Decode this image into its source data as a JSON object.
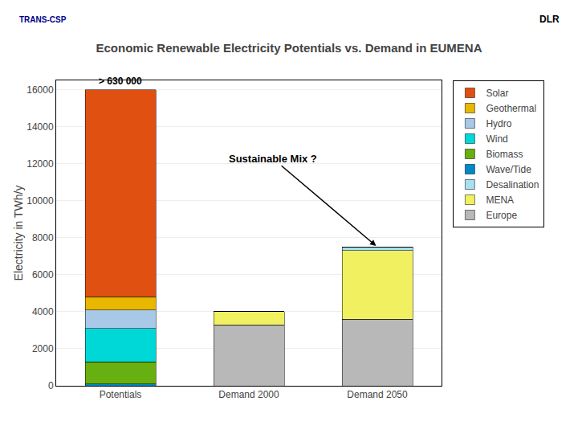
{
  "chart_data": {
    "type": "bar",
    "stacked": true,
    "title": "Economic Renewable Electricity Potentials vs. Demand in EUMENA",
    "ylabel": "Electricity in TWh/y",
    "categories": [
      "Potentials",
      "Demand 2000",
      "Demand 2050"
    ],
    "series": [
      {
        "name": "Solar",
        "color": "#e05010",
        "values": [
          11200,
          0,
          0
        ]
      },
      {
        "name": "Geothermal",
        "color": "#e8b800",
        "values": [
          700,
          0,
          0
        ]
      },
      {
        "name": "Hydro",
        "color": "#a8c8e8",
        "values": [
          1000,
          0,
          0
        ]
      },
      {
        "name": "Wind",
        "color": "#00d8d8",
        "values": [
          1800,
          0,
          0
        ]
      },
      {
        "name": "Biomass",
        "color": "#68b010",
        "values": [
          1200,
          0,
          0
        ]
      },
      {
        "name": "Wave/Tide",
        "color": "#0088c8",
        "values": [
          100,
          0,
          0
        ]
      },
      {
        "name": "Desalination",
        "color": "#a8e0f0",
        "values": [
          0,
          0,
          200
        ]
      },
      {
        "name": "MENA",
        "color": "#f0f060",
        "values": [
          0,
          700,
          3700
        ]
      },
      {
        "name": "Europe",
        "color": "#b8b8b8",
        "values": [
          0,
          3300,
          3600
        ]
      }
    ],
    "ylim": [
      0,
      16500
    ],
    "yticks": [
      0,
      2000,
      4000,
      6000,
      8000,
      10000,
      12000,
      14000,
      16000
    ],
    "grid": true,
    "legend": "right",
    "annotations": [
      "> 630 000",
      "Sustainable Mix ?",
      "TRANS-CSP",
      "DLR"
    ]
  }
}
